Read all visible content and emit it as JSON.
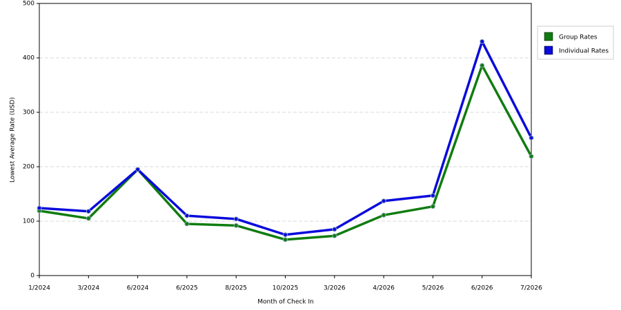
{
  "chart_data": {
    "type": "line",
    "x_label": "Month of Check In",
    "y_label": "Lowest Average Rate (USD)",
    "categories": [
      "1/2024",
      "3/2024",
      "6/2024",
      "6/2025",
      "8/2025",
      "10/2025",
      "3/2026",
      "4/2026",
      "5/2026",
      "6/2026",
      "7/2026"
    ],
    "series": [
      {
        "name": "Group Rates",
        "color": "#107c10",
        "values": [
          119,
          105,
          195,
          95,
          92,
          66,
          73,
          111,
          127,
          386,
          219
        ]
      },
      {
        "name": "Individual Rates",
        "color": "#0a0adc",
        "values": [
          124,
          118,
          195,
          110,
          104,
          75,
          85,
          137,
          147,
          430,
          253
        ]
      }
    ],
    "ylim": [
      0,
      500
    ],
    "yticks": [
      0,
      100,
      200,
      300,
      400,
      500
    ],
    "grid": true,
    "legend": "right"
  }
}
